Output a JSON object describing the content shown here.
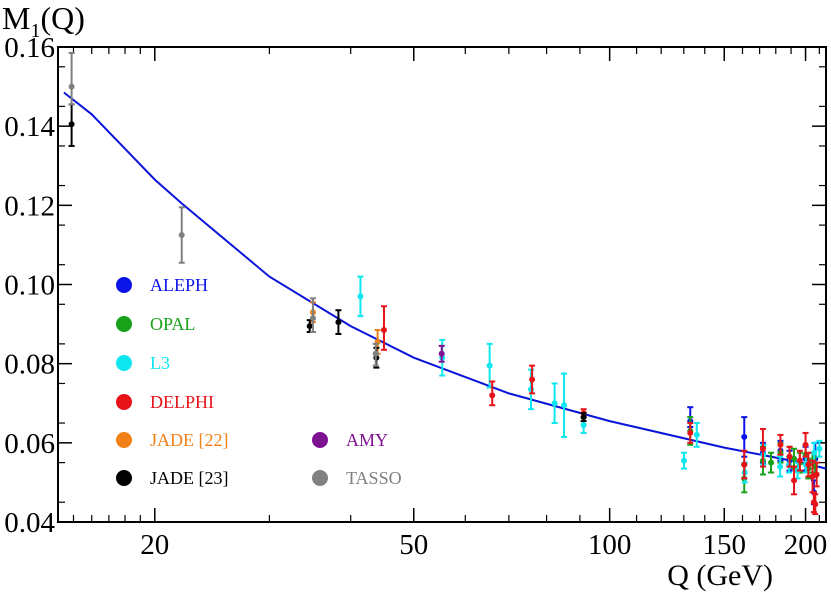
{
  "chart_data": {
    "type": "scatter",
    "ylabel_main": "M",
    "ylabel_sub": "1",
    "ylabel_rest": "(Q)",
    "xlabel": "Q (GeV)",
    "xscale": "log",
    "xlim": [
      14.2,
      215
    ],
    "ylim": [
      0.04,
      0.16
    ],
    "yticks": [
      0.04,
      0.06,
      0.08,
      0.1,
      0.12,
      0.14,
      0.16
    ],
    "ytick_labels": [
      "0.04",
      "0.06",
      "0.08",
      "0.10",
      "0.12",
      "0.14",
      "0.16"
    ],
    "xticks": [
      20,
      50,
      100,
      150,
      200
    ],
    "xtick_labels": [
      "20",
      "50",
      "100",
      "150",
      "200"
    ],
    "fit_curve": {
      "color": "#0a14d8",
      "points": [
        [
          14.5,
          0.1485
        ],
        [
          16,
          0.143
        ],
        [
          20,
          0.1265
        ],
        [
          22,
          0.1205
        ],
        [
          30,
          0.102
        ],
        [
          40,
          0.0895
        ],
        [
          50,
          0.0815
        ],
        [
          70,
          0.0725
        ],
        [
          100,
          0.0655
        ],
        [
          150,
          0.0588
        ],
        [
          200,
          0.0548
        ],
        [
          215,
          0.0535
        ]
      ]
    },
    "series": [
      {
        "name": "ALEPH",
        "color": "#0a14e8",
        "points": [
          [
            133,
            0.0655,
            0.064,
            0.069
          ],
          [
            161,
            0.0615,
            0.0565,
            0.0665
          ],
          [
            172,
            0.0575,
            0.055,
            0.06
          ],
          [
            183,
            0.058,
            0.0555,
            0.0605
          ],
          [
            189,
            0.0555,
            0.053,
            0.058
          ],
          [
            200,
            0.056,
            0.053,
            0.059
          ],
          [
            206,
            0.0475,
            0.0445,
            0.0505
          ],
          [
            207,
            0.056,
            0.052,
            0.06
          ]
        ]
      },
      {
        "name": "OPAL",
        "color": "#17a21a",
        "points": [
          [
            133,
            0.063,
            0.0595,
            0.0665
          ],
          [
            161,
            0.051,
            0.0475,
            0.0545
          ],
          [
            172,
            0.0555,
            0.052,
            0.059
          ],
          [
            177,
            0.055,
            0.0525,
            0.0575
          ],
          [
            183,
            0.0575,
            0.055,
            0.06
          ],
          [
            189,
            0.0565,
            0.054,
            0.059
          ],
          [
            192,
            0.056,
            0.0535,
            0.0585
          ],
          [
            196,
            0.055,
            0.0525,
            0.0575
          ],
          [
            200,
            0.057,
            0.0545,
            0.0595
          ],
          [
            202,
            0.0535,
            0.051,
            0.056
          ],
          [
            205,
            0.055,
            0.0525,
            0.0575
          ],
          [
            207,
            0.054,
            0.0515,
            0.0565
          ]
        ]
      },
      {
        "name": "L3",
        "color": "#0ee6f0",
        "points": [
          [
            41.4,
            0.097,
            0.092,
            0.102
          ],
          [
            55.3,
            0.0815,
            0.077,
            0.086
          ],
          [
            65.4,
            0.0795,
            0.074,
            0.085
          ],
          [
            75.7,
            0.0735,
            0.0685,
            0.0785
          ],
          [
            82.3,
            0.07,
            0.065,
            0.075
          ],
          [
            85.1,
            0.0695,
            0.0615,
            0.0775
          ],
          [
            91.2,
            0.0645,
            0.0625,
            0.0665
          ],
          [
            130.1,
            0.0555,
            0.0535,
            0.0575
          ],
          [
            136.1,
            0.062,
            0.059,
            0.065
          ],
          [
            161.3,
            0.0525,
            0.05,
            0.055
          ],
          [
            172.3,
            0.057,
            0.0545,
            0.0595
          ],
          [
            182.8,
            0.054,
            0.0515,
            0.0565
          ],
          [
            188.6,
            0.0545,
            0.0525,
            0.0565
          ],
          [
            194.4,
            0.053,
            0.051,
            0.055
          ],
          [
            200.2,
            0.0545,
            0.0525,
            0.0565
          ],
          [
            206.2,
            0.0575,
            0.055,
            0.06
          ],
          [
            210.0,
            0.0585,
            0.0565,
            0.0605
          ]
        ]
      },
      {
        "name": "DELPHI",
        "color": "#e61418",
        "points": [
          [
            45,
            0.0885,
            0.0835,
            0.0945
          ],
          [
            66,
            0.072,
            0.0695,
            0.0755
          ],
          [
            76,
            0.076,
            0.0725,
            0.0795
          ],
          [
            91.2,
            0.0675,
            0.0665,
            0.0685
          ],
          [
            133,
            0.0625,
            0.06,
            0.065
          ],
          [
            161,
            0.0545,
            0.051,
            0.058
          ],
          [
            172,
            0.0585,
            0.054,
            0.0635
          ],
          [
            183,
            0.0595,
            0.057,
            0.062
          ],
          [
            189,
            0.0565,
            0.054,
            0.059
          ],
          [
            192,
            0.0505,
            0.047,
            0.054
          ],
          [
            196,
            0.0555,
            0.053,
            0.058
          ],
          [
            200,
            0.0595,
            0.0565,
            0.0625
          ],
          [
            202,
            0.0545,
            0.0515,
            0.0575
          ],
          [
            205,
            0.0515,
            0.0475,
            0.0555
          ],
          [
            206,
            0.045,
            0.0425,
            0.0475
          ],
          [
            207,
            0.0445,
            0.042,
            0.047
          ],
          [
            208,
            0.052,
            0.049,
            0.055
          ]
        ]
      },
      {
        "name": "JADE [22]",
        "color": "#f08018",
        "points": [
          [
            35,
            0.093,
            0.0905,
            0.0955
          ],
          [
            44,
            0.0855,
            0.0825,
            0.0885
          ]
        ]
      },
      {
        "name": "JADE [23]",
        "color": "#000000",
        "points": [
          [
            14.9,
            0.1405,
            0.135,
            0.1455
          ],
          [
            34.6,
            0.0895,
            0.088,
            0.091
          ],
          [
            38.3,
            0.0905,
            0.0875,
            0.0935
          ],
          [
            43.8,
            0.0815,
            0.079,
            0.084
          ],
          [
            91.2,
            0.0665,
            0.0655,
            0.0675
          ]
        ]
      },
      {
        "name": "AMY",
        "color": "#7e1290",
        "points": [
          [
            55.2,
            0.0825,
            0.0805,
            0.0845
          ]
        ]
      },
      {
        "name": "TASSO",
        "color": "#808080",
        "points": [
          [
            14.9,
            0.15,
            0.1455,
            0.1585
          ],
          [
            22,
            0.1125,
            0.1055,
            0.1195
          ],
          [
            35,
            0.0915,
            0.088,
            0.0965
          ],
          [
            43.7,
            0.0825,
            0.0795,
            0.085
          ]
        ]
      }
    ],
    "legend": [
      {
        "label": "ALEPH",
        "color": "#0a14e8"
      },
      {
        "label": "OPAL",
        "color": "#17a21a"
      },
      {
        "label": "L3",
        "color": "#0ee6f0"
      },
      {
        "label": "DELPHI",
        "color": "#e61418"
      },
      {
        "label": "JADE [22]",
        "color": "#f08018"
      },
      {
        "label": "JADE [23]",
        "color": "#000000"
      },
      {
        "label": "AMY",
        "color": "#7e1290"
      },
      {
        "label": "TASSO",
        "color": "#808080"
      }
    ]
  }
}
